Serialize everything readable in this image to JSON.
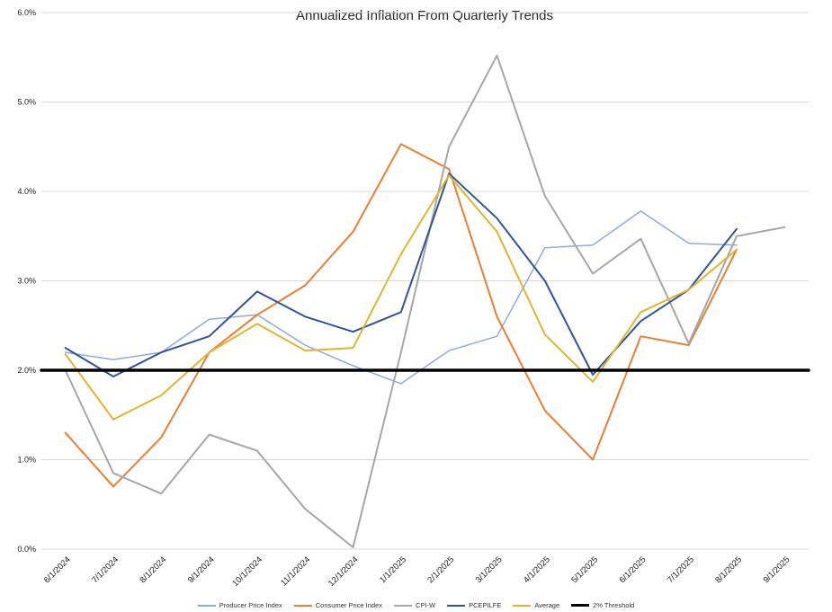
{
  "chart_data": {
    "type": "line",
    "title": "Annualized Inflation From Quarterly Trends",
    "xlabel": "",
    "ylabel": "",
    "ylim": [
      0,
      6
    ],
    "grid": true,
    "legend_position": "bottom",
    "categories": [
      "6/1/2024",
      "7/1/2024",
      "8/1/2024",
      "9/1/2024",
      "10/1/2024",
      "11/1/2024",
      "12/1/2024",
      "1/1/2025",
      "2/1/2025",
      "3/1/2025",
      "4/1/2025",
      "5/1/2025",
      "6/1/2025",
      "7/1/2025",
      "8/1/2025",
      "9/1/2025"
    ],
    "y_ticks": [
      {
        "label": "0.0%",
        "value": 0
      },
      {
        "label": "1.0%",
        "value": 1
      },
      {
        "label": "2.0%",
        "value": 2
      },
      {
        "label": "3.0%",
        "value": 3
      },
      {
        "label": "4.0%",
        "value": 4
      },
      {
        "label": "5.0%",
        "value": 5
      },
      {
        "label": "6.0%",
        "value": 6
      }
    ],
    "series": [
      {
        "name": "Producer Price Index",
        "color": "#8FAADC",
        "width": 1.5,
        "values": [
          2.2,
          2.12,
          2.2,
          2.57,
          2.62,
          2.28,
          2.05,
          1.85,
          2.22,
          2.38,
          3.37,
          3.4,
          3.78,
          3.42,
          3.4,
          null
        ]
      },
      {
        "name": "Consumer Price Index",
        "color": "#ED7D31",
        "width": 2,
        "values": [
          1.3,
          0.7,
          1.25,
          2.2,
          2.62,
          2.95,
          3.55,
          4.53,
          4.25,
          2.6,
          1.55,
          1.0,
          2.38,
          2.28,
          3.35,
          null
        ]
      },
      {
        "name": "CPI-W",
        "color": "#A6A6A6",
        "width": 2,
        "values": [
          2.0,
          0.85,
          0.62,
          1.28,
          1.1,
          0.45,
          0.02,
          2.2,
          4.5,
          5.52,
          3.95,
          3.08,
          3.47,
          2.3,
          3.5,
          3.6
        ]
      },
      {
        "name": "PCEPILFE",
        "color": "#2F5597",
        "width": 2,
        "values": [
          2.25,
          1.93,
          2.2,
          2.38,
          2.88,
          2.6,
          2.43,
          2.65,
          4.2,
          3.7,
          3.0,
          1.95,
          2.55,
          2.9,
          3.58,
          null
        ]
      },
      {
        "name": "Average",
        "color": "#E0B62F",
        "width": 2,
        "values": [
          2.18,
          1.45,
          1.72,
          2.2,
          2.52,
          2.22,
          2.25,
          3.3,
          4.18,
          3.55,
          2.4,
          1.87,
          2.65,
          2.9,
          3.35,
          null
        ]
      },
      {
        "name": "2% Threshold",
        "color": "#000000",
        "width": 3.5,
        "span": "full",
        "value": 2.0
      }
    ]
  }
}
